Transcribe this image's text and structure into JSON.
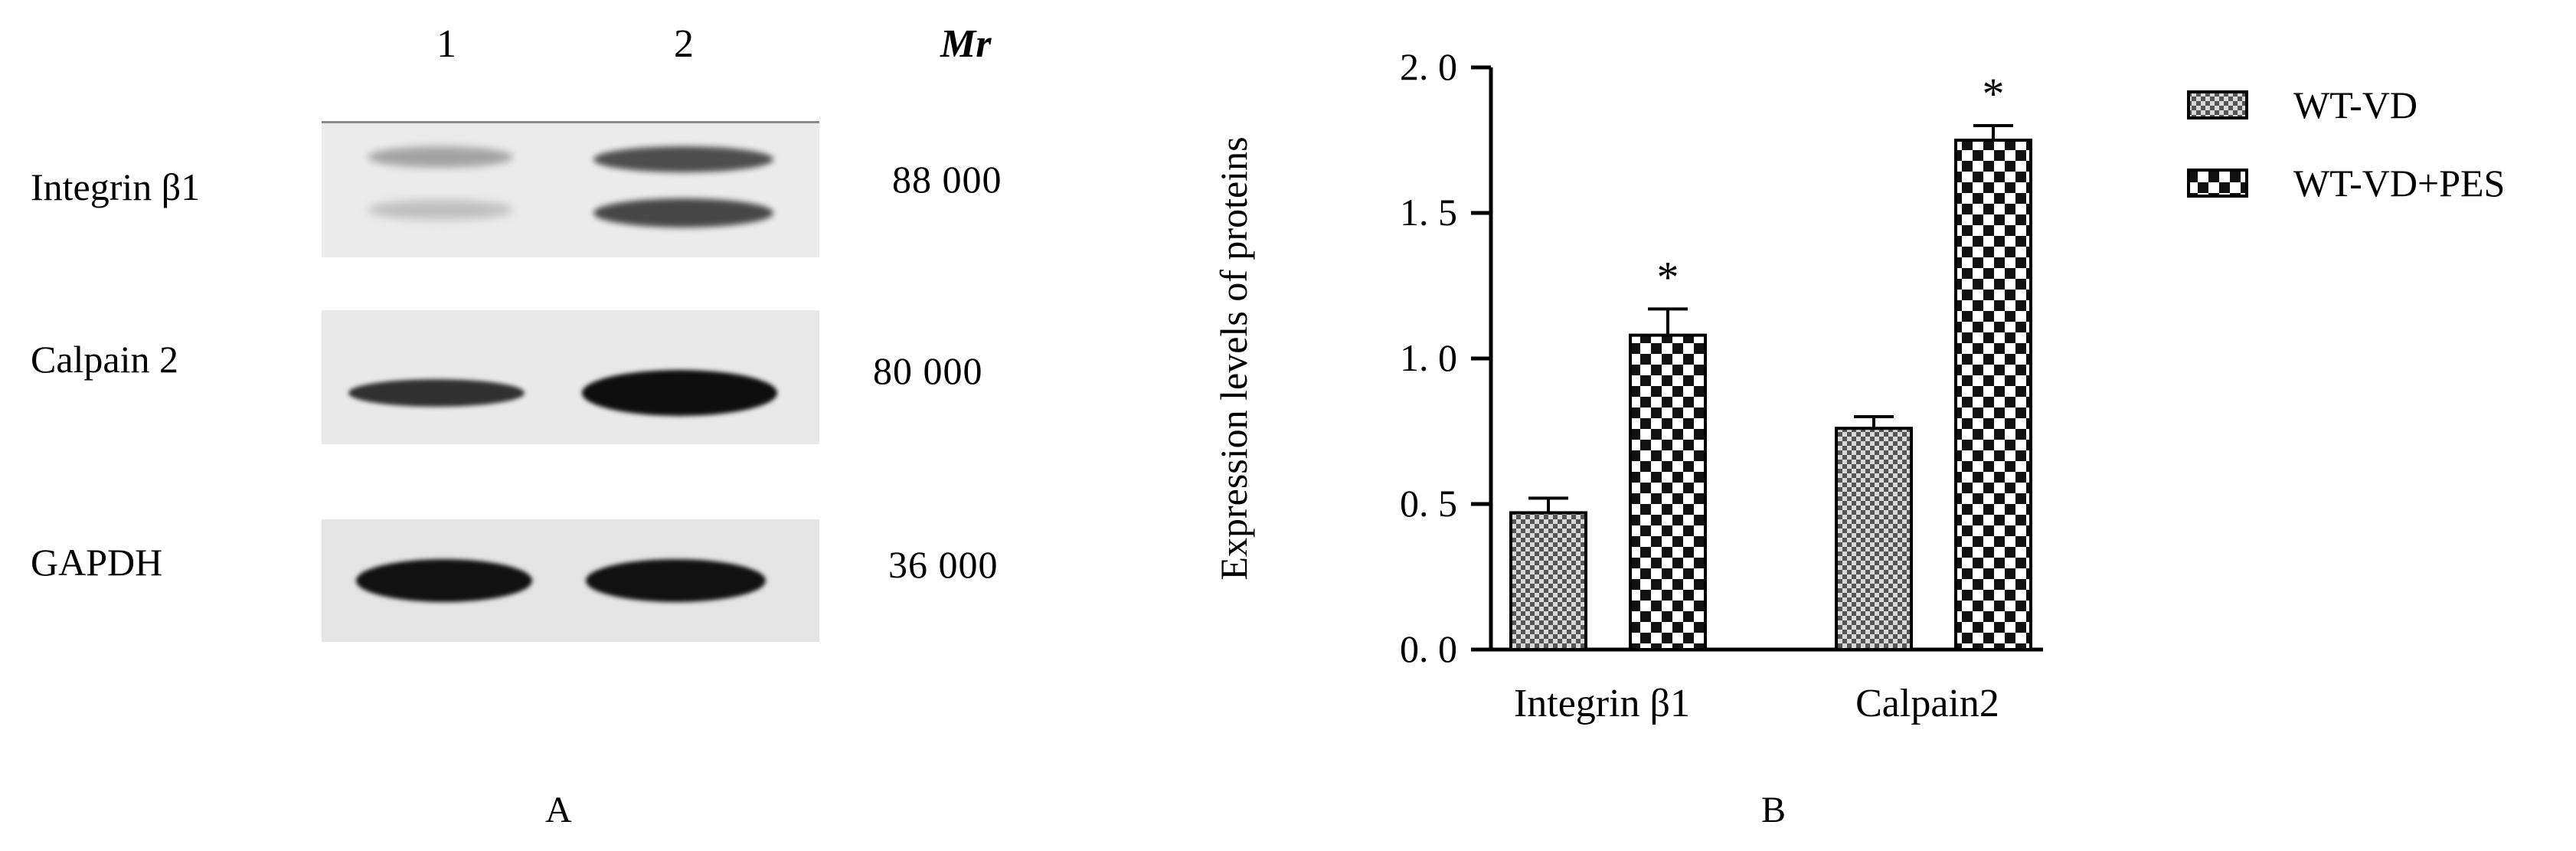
{
  "panel_a": {
    "lane_labels": [
      "1",
      "2"
    ],
    "mr_label": "Mr",
    "rows": [
      {
        "protein": "Integrin β1",
        "mw": "88  000",
        "bands": [
          0.45,
          0.85,
          0.25,
          0.8
        ]
      },
      {
        "protein": "Calpain 2",
        "mw": "80  000",
        "bands": [
          0.85,
          1.0
        ]
      },
      {
        "protein": "GAPDH",
        "mw": "36  000",
        "bands": [
          1.0,
          1.0
        ]
      }
    ],
    "label": "A"
  },
  "panel_b_label": "B",
  "chart_data": {
    "type": "bar",
    "categories": [
      "Integrin β1",
      "Calpain2"
    ],
    "series": [
      {
        "name": "WT-VD",
        "values": [
          0.47,
          0.76
        ],
        "errors": [
          0.05,
          0.04
        ],
        "significance": [
          "",
          ""
        ]
      },
      {
        "name": "WT-VD+PES",
        "values": [
          1.08,
          1.75
        ],
        "errors": [
          0.09,
          0.05
        ],
        "significance": [
          "*",
          "*"
        ]
      }
    ],
    "ylabel": "Expression levels of proteins",
    "ylim": [
      0,
      2.0
    ],
    "yticks": [
      "0. 0",
      "0. 5",
      "1. 0",
      "1. 5",
      "2. 0"
    ],
    "legend_position": "right",
    "grid": false
  }
}
